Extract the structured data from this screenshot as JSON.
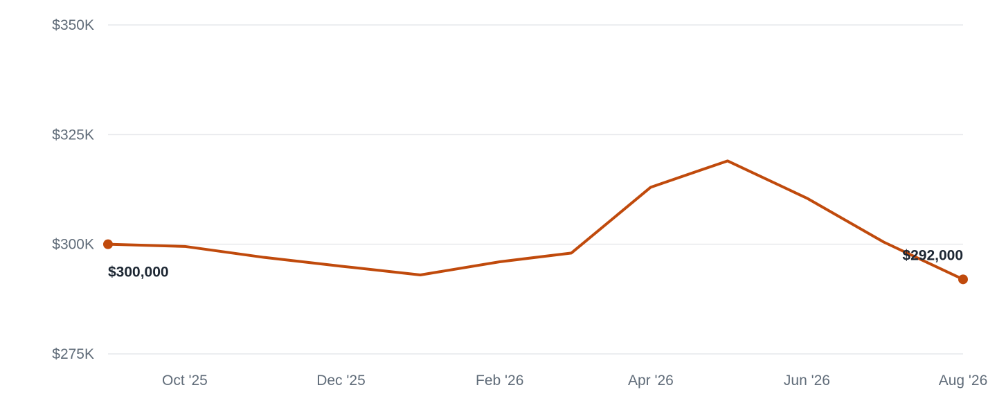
{
  "colors": {
    "line": "#c04a0c",
    "grid": "#e6e8eb",
    "tick_text": "#5f6b78",
    "label_text": "#1d2733"
  },
  "chart_data": {
    "type": "line",
    "title": "",
    "xlabel": "",
    "ylabel": "",
    "ylim": [
      275000,
      350000
    ],
    "y_ticks": [
      {
        "value": 350000,
        "label": "$350K"
      },
      {
        "value": 325000,
        "label": "$325K"
      },
      {
        "value": 300000,
        "label": "$300K"
      },
      {
        "value": 275000,
        "label": "$275K"
      }
    ],
    "x_range": [
      "2025-09-01",
      "2026-08-01"
    ],
    "x_ticks": [
      {
        "date": "2025-10-01",
        "label": "Oct '25"
      },
      {
        "date": "2025-12-01",
        "label": "Dec '25"
      },
      {
        "date": "2026-02-01",
        "label": "Feb '26"
      },
      {
        "date": "2026-04-01",
        "label": "Apr '26"
      },
      {
        "date": "2026-06-01",
        "label": "Jun '26"
      },
      {
        "date": "2026-08-01",
        "label": "Aug '26"
      }
    ],
    "grid": true,
    "series": [
      {
        "points": [
          {
            "x": "2025-09-01",
            "y": 300000
          },
          {
            "x": "2025-10-01",
            "y": 299500
          },
          {
            "x": "2025-11-01",
            "y": 297000
          },
          {
            "x": "2025-12-01",
            "y": 295000
          },
          {
            "x": "2026-01-01",
            "y": 293000
          },
          {
            "x": "2026-02-01",
            "y": 296000
          },
          {
            "x": "2026-03-01",
            "y": 298000
          },
          {
            "x": "2026-04-01",
            "y": 313000
          },
          {
            "x": "2026-05-01",
            "y": 319000
          },
          {
            "x": "2026-06-01",
            "y": 310500
          },
          {
            "x": "2026-07-01",
            "y": 300500
          },
          {
            "x": "2026-08-01",
            "y": 292000
          }
        ]
      }
    ],
    "annotations": [
      {
        "x": "2025-09-01",
        "y": 300000,
        "label": "$300,000"
      },
      {
        "x": "2026-08-01",
        "y": 292000,
        "label": "$292,000"
      }
    ]
  }
}
